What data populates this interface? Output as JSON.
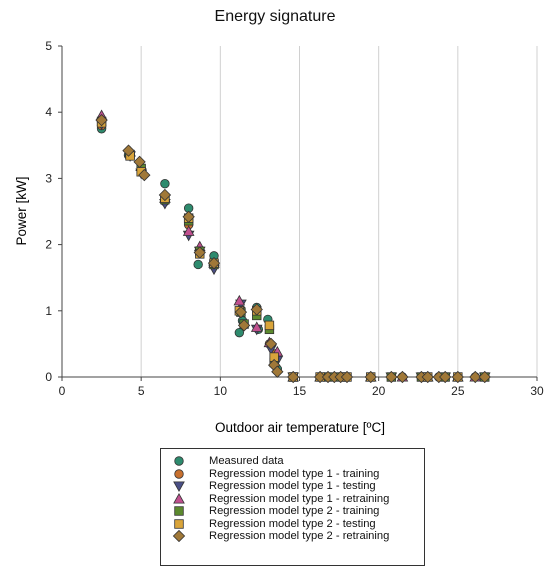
{
  "chart_data": {
    "type": "scatter",
    "title": "Energy signature",
    "xlabel": "Outdoor air temperature [ºC]",
    "ylabel": "Power [kW]",
    "xlim": [
      0,
      30
    ],
    "ylim": [
      0,
      5
    ],
    "xticks": [
      0,
      5,
      10,
      15,
      20,
      25,
      30
    ],
    "yticks": [
      0,
      1,
      2,
      3,
      4,
      5
    ],
    "grid": "vertical",
    "legend_position": "bottom",
    "series": [
      {
        "name": "Measured data",
        "marker": "circle",
        "color": "#2e8b6e",
        "points": [
          [
            2.5,
            3.75
          ],
          [
            4.2,
            3.35
          ],
          [
            5.0,
            3.1
          ],
          [
            6.5,
            2.92
          ],
          [
            8.0,
            2.55
          ],
          [
            8.6,
            1.7
          ],
          [
            9.6,
            1.83
          ],
          [
            11.2,
            0.67
          ],
          [
            11.4,
            0.85
          ],
          [
            12.3,
            1.05
          ],
          [
            12.4,
            0.72
          ],
          [
            13.0,
            0.87
          ],
          [
            13.6,
            0.12
          ],
          [
            14.6,
            0.0
          ],
          [
            16.3,
            0.0
          ],
          [
            16.8,
            0.0
          ],
          [
            17.2,
            0.0
          ],
          [
            17.6,
            0.0
          ],
          [
            18.0,
            0.0
          ],
          [
            19.5,
            0.0
          ],
          [
            20.8,
            0.0
          ],
          [
            21.5,
            0.0
          ],
          [
            22.7,
            0.0
          ],
          [
            23.1,
            0.0
          ],
          [
            23.8,
            0.0
          ],
          [
            24.2,
            0.0
          ],
          [
            25.0,
            0.0
          ],
          [
            26.1,
            0.0
          ],
          [
            26.7,
            0.0
          ]
        ]
      },
      {
        "name": "Regression model type 1 - training",
        "marker": "circle",
        "color": "#c8702e",
        "points": [
          [
            2.5,
            3.8
          ],
          [
            4.3,
            3.37
          ],
          [
            5.0,
            3.12
          ],
          [
            6.5,
            2.65
          ],
          [
            8.0,
            2.3
          ],
          [
            8.7,
            1.88
          ],
          [
            9.6,
            1.7
          ],
          [
            11.3,
            1.02
          ],
          [
            12.3,
            0.95
          ],
          [
            13.1,
            0.5
          ],
          [
            13.5,
            0.35
          ],
          [
            14.6,
            0.0
          ],
          [
            16.3,
            0.0
          ],
          [
            17.2,
            0.0
          ],
          [
            18.0,
            0.0
          ],
          [
            19.5,
            0.0
          ],
          [
            20.8,
            0.0
          ],
          [
            21.5,
            0.0
          ],
          [
            22.7,
            0.0
          ],
          [
            23.8,
            0.0
          ],
          [
            25.0,
            0.0
          ],
          [
            26.1,
            0.0
          ],
          [
            26.7,
            0.0
          ]
        ]
      },
      {
        "name": "Regression model type 1 - testing",
        "marker": "triangle-down",
        "color": "#4a4f86",
        "points": [
          [
            2.5,
            3.82
          ],
          [
            4.3,
            3.34
          ],
          [
            5.0,
            3.08
          ],
          [
            6.5,
            2.62
          ],
          [
            8.0,
            2.14
          ],
          [
            8.7,
            1.9
          ],
          [
            9.6,
            1.63
          ],
          [
            11.3,
            1.1
          ],
          [
            12.3,
            0.72
          ],
          [
            13.2,
            0.42
          ],
          [
            13.6,
            0.25
          ],
          [
            14.6,
            0.0
          ],
          [
            16.8,
            0.0
          ],
          [
            17.6,
            0.0
          ],
          [
            20.8,
            0.0
          ],
          [
            22.7,
            0.0
          ],
          [
            24.2,
            0.0
          ],
          [
            26.7,
            0.0
          ]
        ]
      },
      {
        "name": "Regression model type 1 - retraining",
        "marker": "triangle-up",
        "color": "#c0508f",
        "points": [
          [
            2.5,
            3.95
          ],
          [
            4.3,
            3.4
          ],
          [
            5.0,
            3.18
          ],
          [
            6.5,
            2.7
          ],
          [
            8.0,
            2.2
          ],
          [
            8.7,
            1.97
          ],
          [
            9.6,
            1.72
          ],
          [
            11.2,
            1.15
          ],
          [
            12.3,
            0.75
          ],
          [
            13.1,
            0.52
          ],
          [
            13.6,
            0.38
          ],
          [
            14.6,
            0.0
          ],
          [
            16.3,
            0.0
          ],
          [
            17.2,
            0.0
          ],
          [
            19.5,
            0.0
          ],
          [
            21.5,
            0.0
          ],
          [
            23.1,
            0.0
          ],
          [
            25.0,
            0.0
          ],
          [
            26.1,
            0.0
          ]
        ]
      },
      {
        "name": "Regression model type 2 - training",
        "marker": "square",
        "color": "#5c8a2e",
        "points": [
          [
            2.5,
            3.86
          ],
          [
            4.3,
            3.36
          ],
          [
            5.0,
            3.15
          ],
          [
            6.5,
            2.68
          ],
          [
            8.0,
            2.36
          ],
          [
            8.7,
            1.9
          ],
          [
            9.6,
            1.7
          ],
          [
            11.3,
            0.98
          ],
          [
            11.5,
            0.8
          ],
          [
            12.3,
            0.93
          ],
          [
            13.1,
            0.72
          ],
          [
            13.4,
            0.22
          ],
          [
            14.6,
            0.0
          ],
          [
            16.8,
            0.0
          ],
          [
            17.6,
            0.0
          ],
          [
            20.8,
            0.0
          ],
          [
            22.7,
            0.0
          ],
          [
            24.2,
            0.0
          ],
          [
            26.7,
            0.0
          ]
        ]
      },
      {
        "name": "Regression model type 2 - testing",
        "marker": "square",
        "color": "#d9a43a",
        "points": [
          [
            2.5,
            3.84
          ],
          [
            4.3,
            3.34
          ],
          [
            5.0,
            3.1
          ],
          [
            6.5,
            2.7
          ],
          [
            8.0,
            2.4
          ],
          [
            8.7,
            1.86
          ],
          [
            9.6,
            1.72
          ],
          [
            11.2,
            1.0
          ],
          [
            12.3,
            1.0
          ],
          [
            13.1,
            0.78
          ],
          [
            13.4,
            0.3
          ],
          [
            14.6,
            0.0
          ],
          [
            16.3,
            0.0
          ],
          [
            18.0,
            0.0
          ],
          [
            19.5,
            0.0
          ],
          [
            23.1,
            0.0
          ],
          [
            25.0,
            0.0
          ]
        ]
      },
      {
        "name": "Regression model type 2 - retraining",
        "marker": "diamond",
        "color": "#a07838",
        "points": [
          [
            2.5,
            3.88
          ],
          [
            4.2,
            3.42
          ],
          [
            4.9,
            3.25
          ],
          [
            5.2,
            3.05
          ],
          [
            6.5,
            2.75
          ],
          [
            8.0,
            2.42
          ],
          [
            8.7,
            1.88
          ],
          [
            9.6,
            1.72
          ],
          [
            11.3,
            0.98
          ],
          [
            11.5,
            0.78
          ],
          [
            12.3,
            1.02
          ],
          [
            13.2,
            0.5
          ],
          [
            13.4,
            0.18
          ],
          [
            13.6,
            0.08
          ],
          [
            14.6,
            0.0
          ],
          [
            16.3,
            0.0
          ],
          [
            16.8,
            0.0
          ],
          [
            17.2,
            0.0
          ],
          [
            17.6,
            0.0
          ],
          [
            18.0,
            0.0
          ],
          [
            19.5,
            0.0
          ],
          [
            20.8,
            0.0
          ],
          [
            21.5,
            0.0
          ],
          [
            22.7,
            0.0
          ],
          [
            23.1,
            0.0
          ],
          [
            23.8,
            0.0
          ],
          [
            24.2,
            0.0
          ],
          [
            25.0,
            0.0
          ],
          [
            26.1,
            0.0
          ],
          [
            26.7,
            0.0
          ]
        ]
      }
    ]
  }
}
